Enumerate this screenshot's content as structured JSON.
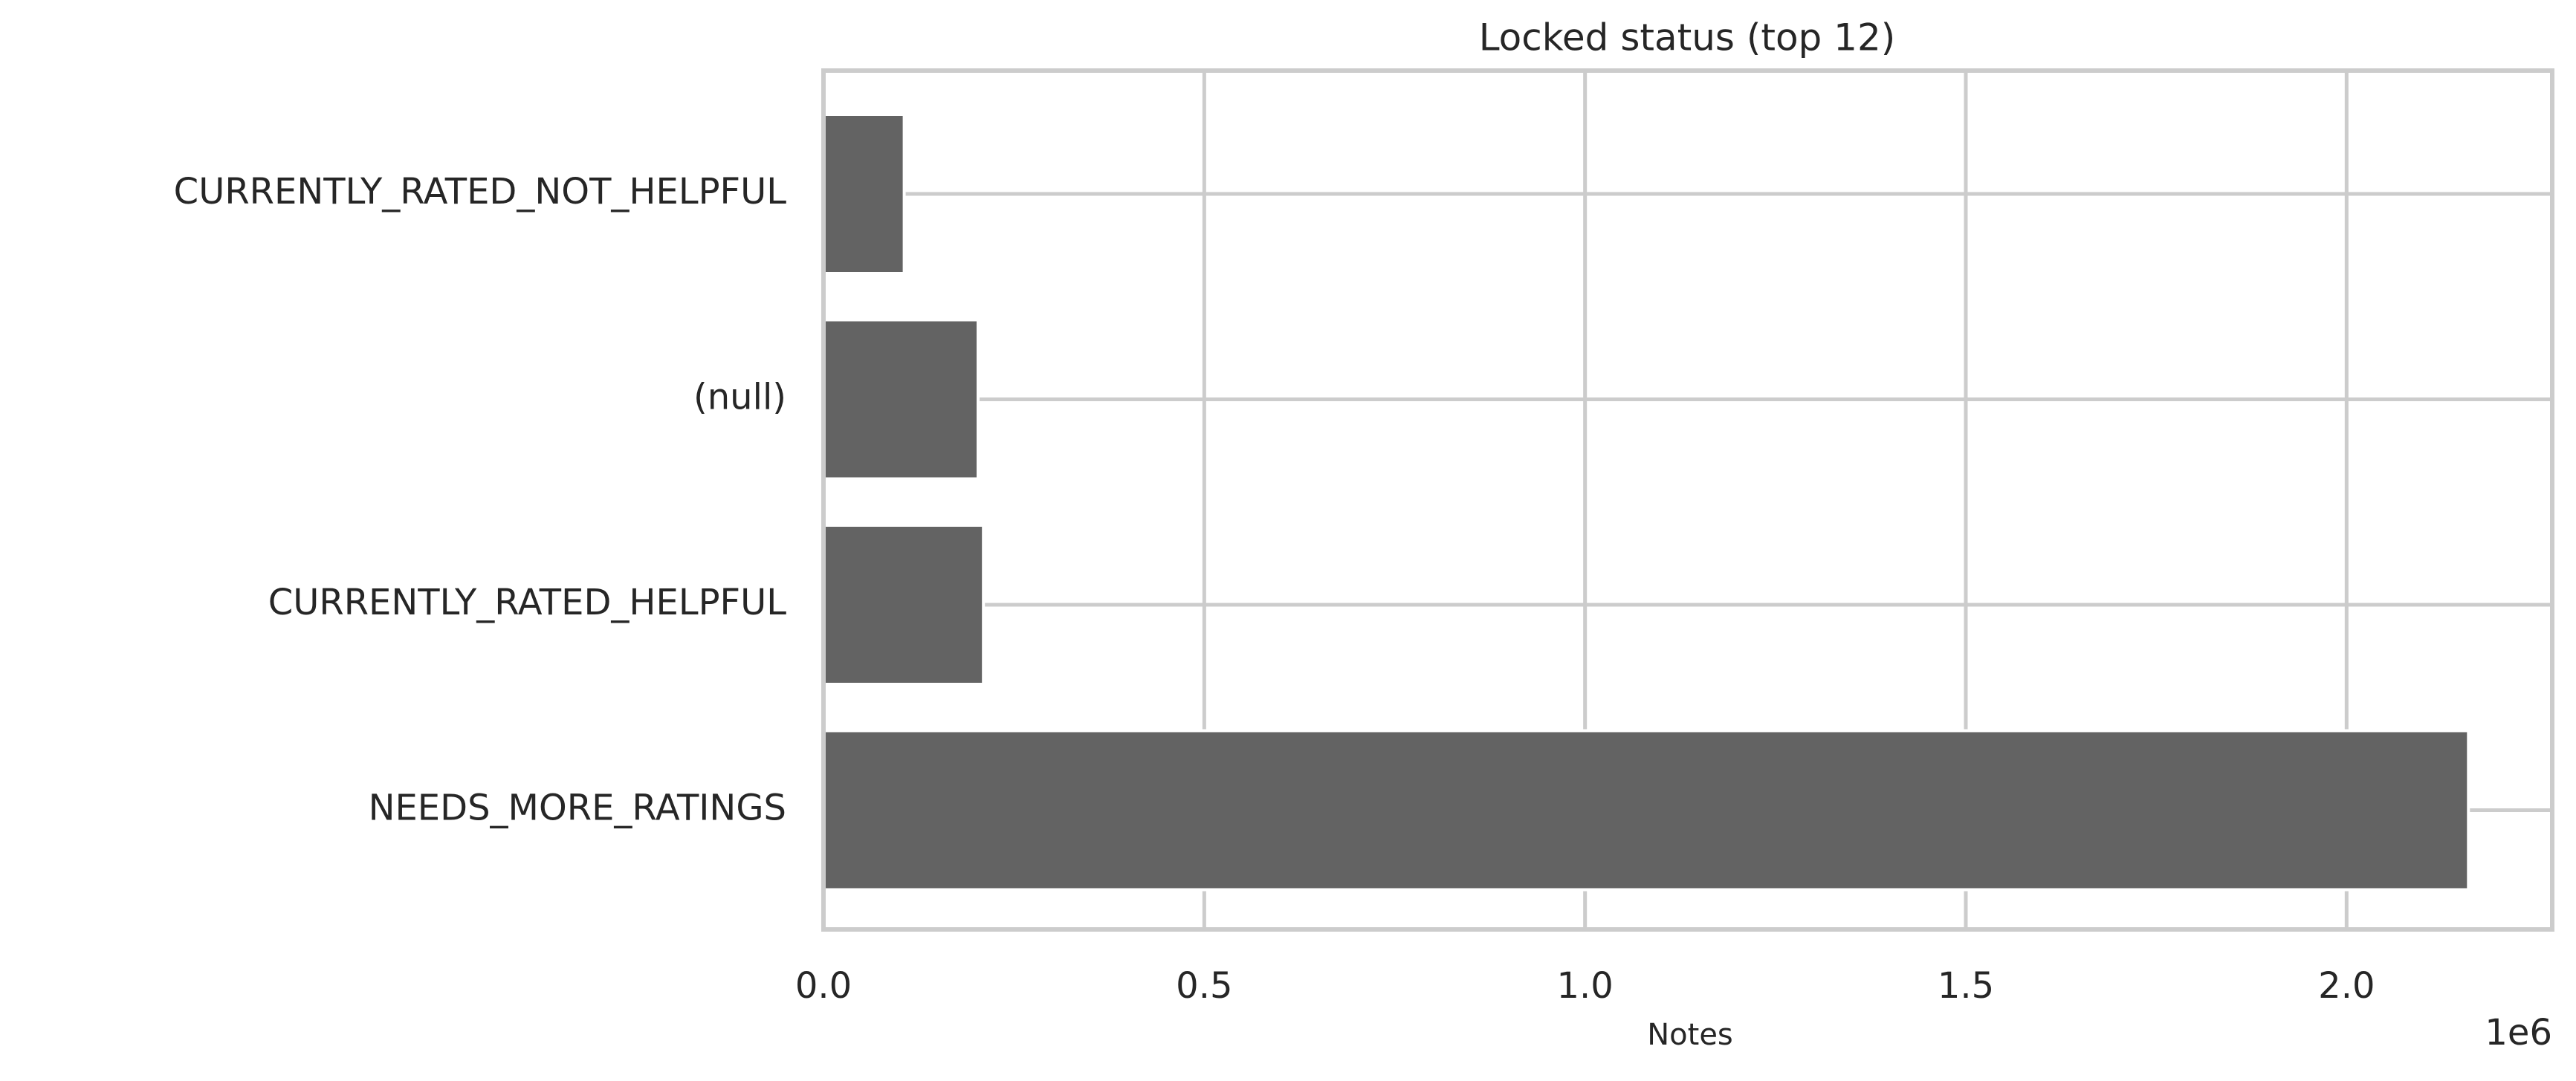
{
  "chart_data": {
    "type": "barh",
    "title": "Locked status (top 12)",
    "x_label": "Notes",
    "x_offset_label": "1e6",
    "categories": [
      "CURRENTLY_RATED_NOT_HELPFUL",
      "(null)",
      "CURRENTLY_RATED_HELPFUL",
      "NEEDS_MORE_RATINGS"
    ],
    "values": [
      106000,
      203000,
      210000,
      2160000
    ],
    "color": "#636363",
    "xlim": [
      0,
      2270000
    ],
    "xticks": [
      {
        "value": 0,
        "label": "0.0"
      },
      {
        "value": 500000,
        "label": "0.5"
      },
      {
        "value": 1000000,
        "label": "1.0"
      },
      {
        "value": 1500000,
        "label": "1.5"
      },
      {
        "value": 2000000,
        "label": "2.0"
      }
    ],
    "grid": true
  }
}
